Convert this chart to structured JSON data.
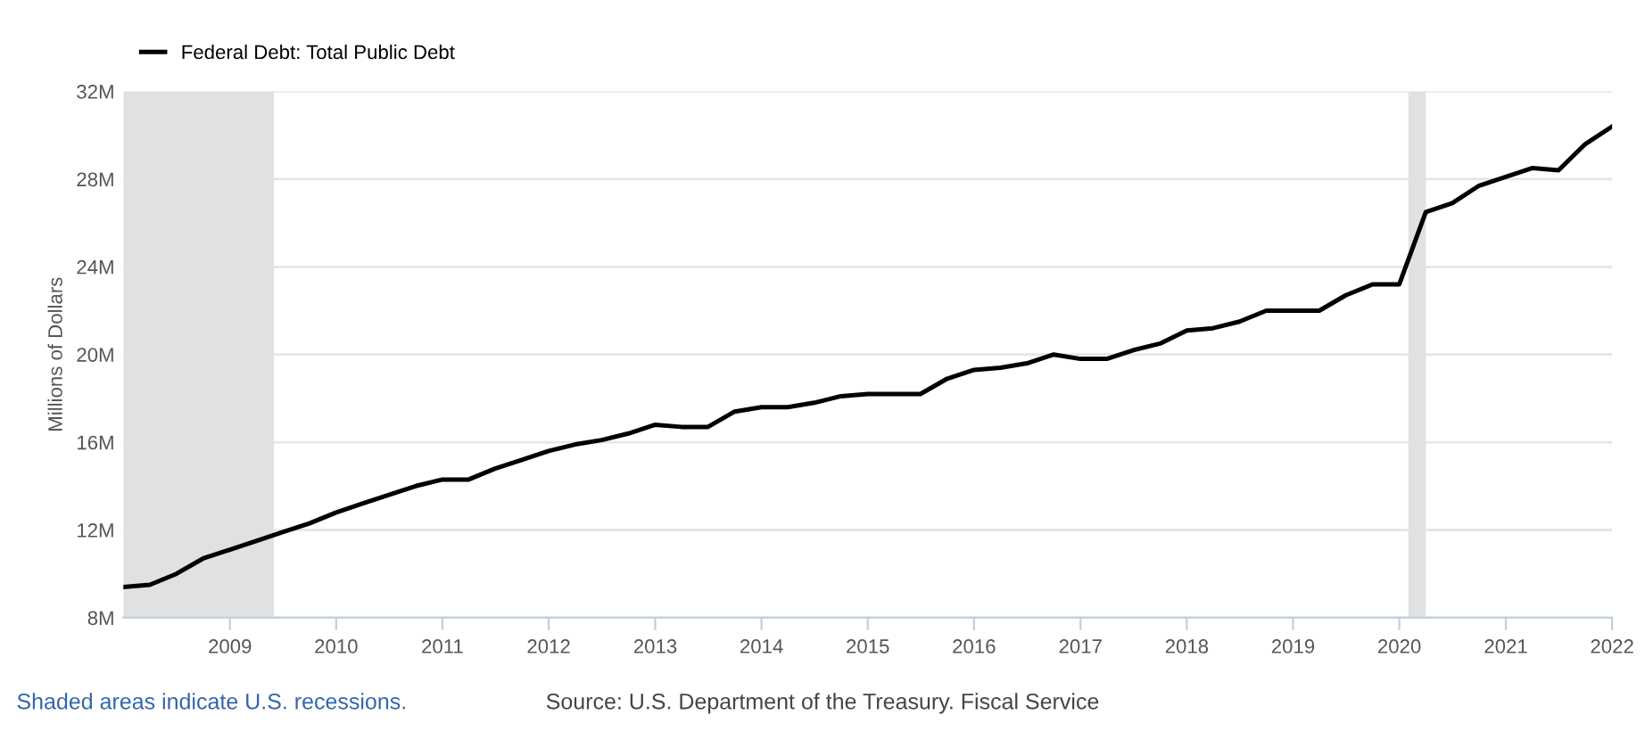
{
  "chart_data": {
    "type": "line",
    "x": [
      "2008-01",
      "2008-04",
      "2008-07",
      "2008-10",
      "2009-01",
      "2009-04",
      "2009-07",
      "2009-10",
      "2010-01",
      "2010-04",
      "2010-07",
      "2010-10",
      "2011-01",
      "2011-04",
      "2011-07",
      "2011-10",
      "2012-01",
      "2012-04",
      "2012-07",
      "2012-10",
      "2013-01",
      "2013-04",
      "2013-07",
      "2013-10",
      "2014-01",
      "2014-04",
      "2014-07",
      "2014-10",
      "2015-01",
      "2015-04",
      "2015-07",
      "2015-10",
      "2016-01",
      "2016-04",
      "2016-07",
      "2016-10",
      "2017-01",
      "2017-04",
      "2017-07",
      "2017-10",
      "2018-01",
      "2018-04",
      "2018-07",
      "2018-10",
      "2019-01",
      "2019-04",
      "2019-07",
      "2019-10",
      "2020-01",
      "2020-04",
      "2020-07",
      "2020-10",
      "2021-01",
      "2021-04",
      "2021-07",
      "2021-10",
      "2022-01"
    ],
    "series": [
      {
        "name": "Federal Debt: Total Public Debt",
        "color": "#000000",
        "values": [
          9400000,
          9500000,
          10000000,
          10700000,
          11100000,
          11500000,
          11900000,
          12300000,
          12800000,
          13200000,
          13600000,
          14000000,
          14300000,
          14300000,
          14800000,
          15200000,
          15600000,
          15900000,
          16100000,
          16400000,
          16800000,
          16700000,
          16700000,
          17400000,
          17600000,
          17600000,
          17800000,
          18100000,
          18200000,
          18200000,
          18200000,
          18900000,
          19300000,
          19400000,
          19600000,
          20000000,
          19800000,
          19800000,
          20200000,
          20500000,
          21100000,
          21200000,
          21500000,
          22000000,
          22000000,
          22000000,
          22700000,
          23200000,
          23200000,
          26500000,
          26900000,
          27700000,
          28100000,
          28500000,
          28400000,
          29600000,
          30400000
        ]
      }
    ],
    "ylabel": "Millions of Dollars",
    "xlim": [
      "2008-01",
      "2022-01"
    ],
    "xticks": [
      {
        "value": "2009-01",
        "label": "2009"
      },
      {
        "value": "2010-01",
        "label": "2010"
      },
      {
        "value": "2011-01",
        "label": "2011"
      },
      {
        "value": "2012-01",
        "label": "2012"
      },
      {
        "value": "2013-01",
        "label": "2013"
      },
      {
        "value": "2014-01",
        "label": "2014"
      },
      {
        "value": "2015-01",
        "label": "2015"
      },
      {
        "value": "2016-01",
        "label": "2016"
      },
      {
        "value": "2017-01",
        "label": "2017"
      },
      {
        "value": "2018-01",
        "label": "2018"
      },
      {
        "value": "2019-01",
        "label": "2019"
      },
      {
        "value": "2020-01",
        "label": "2020"
      },
      {
        "value": "2021-01",
        "label": "2021"
      },
      {
        "value": "2022-01",
        "label": "2022"
      }
    ],
    "ylim": [
      8000000,
      32000000
    ],
    "yticks": [
      {
        "value": 8000000,
        "label": "8M"
      },
      {
        "value": 12000000,
        "label": "12M"
      },
      {
        "value": 16000000,
        "label": "16M"
      },
      {
        "value": 20000000,
        "label": "20M"
      },
      {
        "value": 24000000,
        "label": "24M"
      },
      {
        "value": 28000000,
        "label": "28M"
      },
      {
        "value": 32000000,
        "label": "32M"
      }
    ],
    "bands": [
      {
        "axis": "x",
        "from": "2008-01",
        "to": "2009-06",
        "color": "#e1e1e1"
      },
      {
        "axis": "x",
        "from": "2020-02",
        "to": "2020-04",
        "color": "#e1e1e1"
      }
    ],
    "grid": "y",
    "legend": "top left",
    "line_style": "solid",
    "marker": "none",
    "annotations": [
      "Shaded areas indicate U.S. recessions.",
      "Source: U.S. Department of the Treasury. Fiscal Service"
    ]
  }
}
